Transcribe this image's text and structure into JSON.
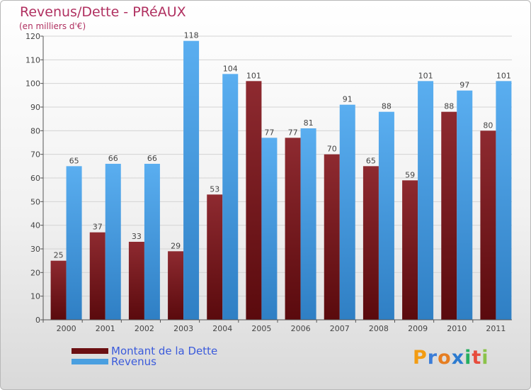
{
  "header": {
    "title": "Revenus/Dette - PRéAUX",
    "subtitle": "(en milliers d'€)"
  },
  "chart_data": {
    "type": "bar",
    "title": "Revenus/Dette - PRéAUX",
    "ylabel": "(en milliers d'€)",
    "xlabel": "",
    "ylim": [
      0,
      120
    ],
    "yticks": [
      0,
      10,
      20,
      30,
      40,
      50,
      60,
      70,
      80,
      90,
      100,
      110,
      120
    ],
    "grid": true,
    "legend_position": "bottom-left",
    "categories": [
      "2000",
      "2001",
      "2002",
      "2003",
      "2004",
      "2005",
      "2006",
      "2007",
      "2008",
      "2009",
      "2010",
      "2011"
    ],
    "series": [
      {
        "name": "Montant de la Dette",
        "color": "#7a1f24",
        "values": [
          25,
          37,
          33,
          29,
          53,
          101,
          77,
          70,
          65,
          59,
          88,
          80
        ]
      },
      {
        "name": "Revenus",
        "color": "#4a9fe0",
        "values": [
          65,
          66,
          66,
          118,
          104,
          77,
          81,
          91,
          88,
          101,
          97,
          101
        ]
      }
    ]
  },
  "legend": {
    "debt_label": "Montant de la Dette",
    "revenue_label": "Revenus",
    "debt_color": "#6b0f12",
    "revenue_color": "#4a9fe0"
  },
  "logo": {
    "text": "Proxiti",
    "letters": [
      "P",
      "r",
      "o",
      "x",
      "i",
      "t",
      "i"
    ],
    "colors": [
      "#f39c12",
      "#3b7dd8",
      "#e67e22",
      "#2c7bd0",
      "#27ae60",
      "#e74c3c",
      "#8bc34a"
    ]
  }
}
